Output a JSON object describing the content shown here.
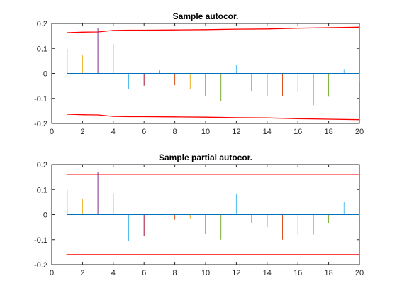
{
  "chart_data": [
    {
      "type": "stem",
      "title": "Sample autocor.",
      "xlabel": "",
      "ylabel": "",
      "xlim": [
        0,
        20
      ],
      "ylim": [
        -0.2,
        0.2
      ],
      "xticks": [
        0,
        2,
        4,
        6,
        8,
        10,
        12,
        14,
        16,
        18,
        20
      ],
      "yticks": [
        -0.2,
        -0.1,
        0,
        0.1,
        0.2
      ],
      "ytick_labels": [
        "-0.2",
        "-0.1",
        "0",
        "0.1",
        "0.2"
      ],
      "grid": false,
      "baseline_color": "#0072bd",
      "lags": [
        1,
        2,
        3,
        4,
        5,
        6,
        7,
        8,
        9,
        10,
        11,
        12,
        13,
        14,
        15,
        16,
        17,
        18,
        19,
        20
      ],
      "values": [
        0.098,
        0.072,
        0.181,
        0.118,
        -0.063,
        -0.049,
        0.012,
        -0.047,
        -0.063,
        -0.09,
        -0.112,
        0.034,
        -0.07,
        -0.09,
        -0.09,
        -0.072,
        -0.127,
        -0.093,
        0.017,
        -0.035
      ],
      "stem_colors": [
        "#d95319",
        "#edb120",
        "#7e2f8e",
        "#77ac30",
        "#4dbeee",
        "#a2142f",
        "#0072bd",
        "#d95319",
        "#edb120",
        "#7e2f8e",
        "#77ac30",
        "#4dbeee",
        "#a2142f",
        "#0072bd",
        "#d95319",
        "#edb120",
        "#7e2f8e",
        "#77ac30",
        "#4dbeee",
        "#a2142f"
      ],
      "bound_color": "#ff0000",
      "upper_bound": {
        "x": [
          1,
          2,
          3,
          4,
          5,
          6,
          8,
          10,
          12,
          14,
          16,
          18,
          20
        ],
        "y": [
          0.163,
          0.165,
          0.166,
          0.172,
          0.173,
          0.173,
          0.174,
          0.175,
          0.177,
          0.178,
          0.181,
          0.183,
          0.185
        ]
      },
      "lower_bound": {
        "x": [
          1,
          2,
          3,
          4,
          5,
          6,
          8,
          10,
          12,
          14,
          16,
          18,
          20
        ],
        "y": [
          -0.163,
          -0.165,
          -0.166,
          -0.172,
          -0.173,
          -0.173,
          -0.174,
          -0.175,
          -0.177,
          -0.178,
          -0.181,
          -0.183,
          -0.185
        ]
      }
    },
    {
      "type": "stem",
      "title": "Sample partial autocor.",
      "xlabel": "",
      "ylabel": "",
      "xlim": [
        0,
        20
      ],
      "ylim": [
        -0.2,
        0.2
      ],
      "xticks": [
        0,
        2,
        4,
        6,
        8,
        10,
        12,
        14,
        16,
        18,
        20
      ],
      "yticks": [
        -0.2,
        -0.1,
        0,
        0.1,
        0.2
      ],
      "ytick_labels": [
        "-0.2",
        "-0.1",
        "0",
        "0.1",
        "0.2"
      ],
      "grid": false,
      "baseline_color": "#0072bd",
      "lags": [
        1,
        2,
        3,
        4,
        5,
        6,
        7,
        8,
        9,
        10,
        11,
        12,
        13,
        14,
        15,
        16,
        17,
        18,
        19,
        20
      ],
      "values": [
        0.098,
        0.061,
        0.171,
        0.085,
        -0.105,
        -0.085,
        0.001,
        -0.02,
        -0.015,
        -0.078,
        -0.1,
        0.084,
        -0.035,
        -0.05,
        -0.1,
        -0.08,
        -0.08,
        -0.035,
        0.052,
        -0.01
      ],
      "stem_colors": [
        "#d95319",
        "#edb120",
        "#7e2f8e",
        "#77ac30",
        "#4dbeee",
        "#a2142f",
        "#0072bd",
        "#d95319",
        "#edb120",
        "#7e2f8e",
        "#77ac30",
        "#4dbeee",
        "#a2142f",
        "#0072bd",
        "#d95319",
        "#edb120",
        "#7e2f8e",
        "#77ac30",
        "#4dbeee",
        "#a2142f"
      ],
      "bound_color": "#ff0000",
      "upper_bound": {
        "x": [
          0.95,
          20
        ],
        "y": [
          0.16,
          0.16
        ]
      },
      "lower_bound": {
        "x": [
          0.95,
          20
        ],
        "y": [
          -0.16,
          -0.16
        ]
      }
    }
  ]
}
